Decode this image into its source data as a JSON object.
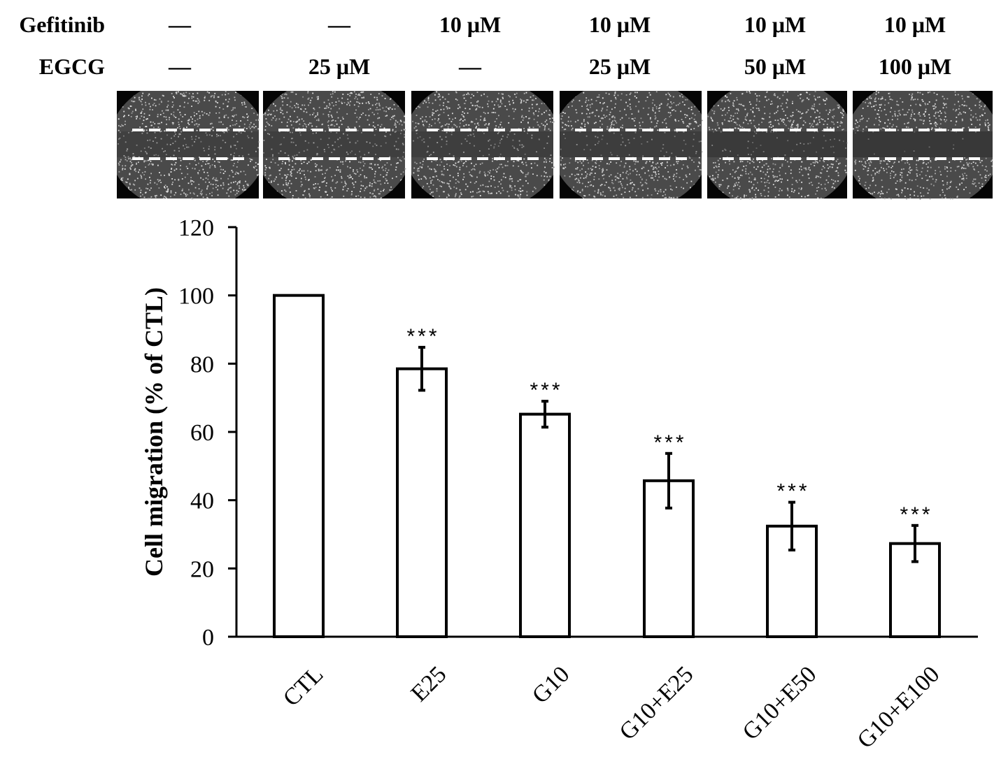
{
  "treatment_table": {
    "rows": [
      {
        "label": "Gefitinib",
        "values": [
          "—",
          "—",
          "10 μM",
          "10 μM",
          "10 μM",
          "10 μM"
        ]
      },
      {
        "label": "EGCG",
        "values": [
          "—",
          "25 μM",
          "—",
          "25 μM",
          "50 μM",
          "100 μM"
        ]
      }
    ]
  },
  "wound_images": {
    "count": 6,
    "wound_width": [
      0.5,
      0.55,
      0.6,
      0.7,
      0.8,
      0.95
    ]
  },
  "chart_data": {
    "type": "bar",
    "categories": [
      "CTL",
      "E25",
      "G10",
      "G10+E25",
      "G10+E50",
      "G10+E100"
    ],
    "values": [
      100,
      78.5,
      65.2,
      45.7,
      32.4,
      27.3
    ],
    "errors": [
      0,
      6.3,
      3.8,
      8.0,
      7.0,
      5.3
    ],
    "significance": [
      "",
      "***",
      "***",
      "***",
      "***",
      "***"
    ],
    "title": "",
    "xlabel": "",
    "ylabel": "Cell migration (% of CTL)",
    "ylim": [
      0,
      120
    ],
    "yticks": [
      0,
      20,
      40,
      60,
      80,
      100,
      120
    ],
    "bar_color": "#ffffff",
    "bar_edge_color": "#000000",
    "grid": false,
    "legend": "none"
  }
}
